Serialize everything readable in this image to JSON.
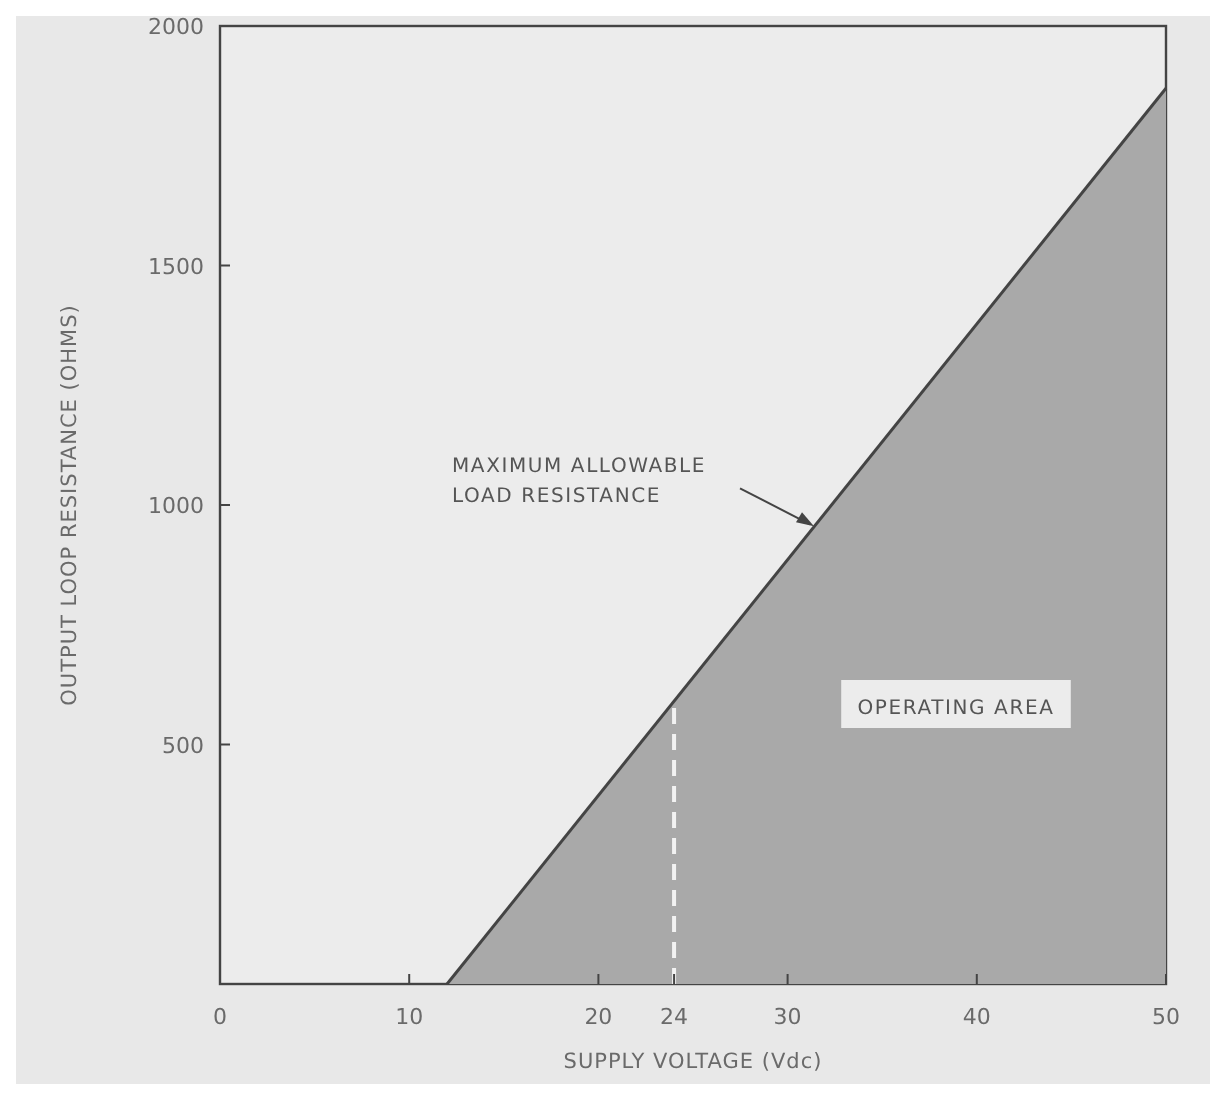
{
  "chart_data": {
    "type": "area",
    "xlabel": "SUPPLY VOLTAGE (Vdc)",
    "ylabel": "OUTPUT LOOP RESISTANCE (OHMS)",
    "series": [
      {
        "color": "#a9a9a9",
        "x": [
          12,
          50
        ],
        "values": [
          0,
          1870
        ]
      }
    ],
    "xlim": [
      0,
      50
    ],
    "xticks": [
      0,
      10,
      20,
      24,
      30,
      40,
      50
    ],
    "ylim": [
      0,
      2000
    ],
    "yticks": [
      500,
      1000,
      1500,
      2000
    ],
    "grid": false,
    "ref_lines": [
      {
        "axis": "x",
        "value": 24,
        "color": "#f2f2f2",
        "line_style": "dashed"
      }
    ],
    "annotations": [
      "MAXIMUM ALLOWABLE\nLOAD RESISTANCE",
      "OPERATING AREA"
    ]
  }
}
